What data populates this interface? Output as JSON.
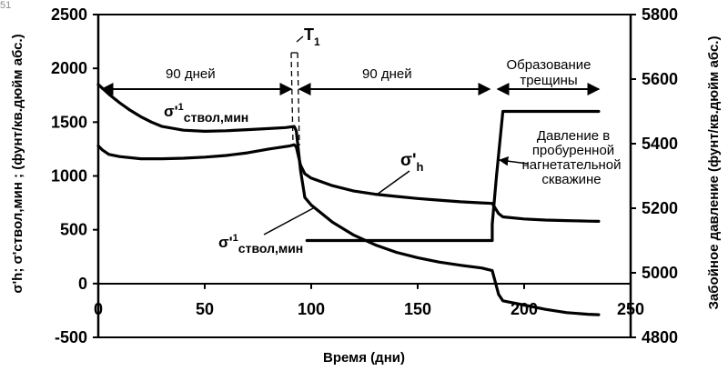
{
  "corner_mark": "51",
  "chart_data": {
    "type": "line",
    "xlabel": "Время (дни)",
    "ylabel_left": "σ'h; σ'ствол,мин ; (фунт/кв.дюйм абс.)",
    "ylabel_right": "Забойное давление (фунт/кв.дюйм абс.)",
    "xlim": [
      0,
      250
    ],
    "xticks": [
      "0",
      "50",
      "100",
      "150",
      "200",
      "250"
    ],
    "ylim_left": [
      -500,
      2500
    ],
    "yticks_left": [
      "-500",
      "0",
      "500",
      "1000",
      "1500",
      "2000",
      "2500"
    ],
    "ylim_right": [
      4800,
      5800
    ],
    "yticks_right": [
      "4800",
      "5000",
      "5200",
      "5400",
      "5600",
      "5800"
    ],
    "series": [
      {
        "name": "σ'ствол,мин",
        "axis": "left",
        "points": [
          [
            0,
            1850
          ],
          [
            5,
            1760
          ],
          [
            10,
            1680
          ],
          [
            15,
            1610
          ],
          [
            20,
            1550
          ],
          [
            25,
            1500
          ],
          [
            30,
            1460
          ],
          [
            40,
            1425
          ],
          [
            50,
            1415
          ],
          [
            60,
            1420
          ],
          [
            70,
            1430
          ],
          [
            80,
            1440
          ],
          [
            88,
            1450
          ],
          [
            92,
            1460
          ],
          [
            93,
            1420
          ],
          [
            95,
            1050
          ],
          [
            97,
            800
          ],
          [
            100,
            730
          ],
          [
            110,
            570
          ],
          [
            120,
            450
          ],
          [
            130,
            360
          ],
          [
            140,
            290
          ],
          [
            150,
            240
          ],
          [
            160,
            200
          ],
          [
            170,
            170
          ],
          [
            180,
            145
          ],
          [
            185,
            120
          ],
          [
            188,
            -100
          ],
          [
            190,
            -160
          ],
          [
            200,
            -200
          ],
          [
            210,
            -240
          ],
          [
            220,
            -270
          ],
          [
            230,
            -285
          ],
          [
            235,
            -290
          ]
        ]
      },
      {
        "name": "σ'h",
        "axis": "left",
        "points": [
          [
            0,
            1280
          ],
          [
            2,
            1240
          ],
          [
            5,
            1200
          ],
          [
            10,
            1180
          ],
          [
            20,
            1160
          ],
          [
            30,
            1160
          ],
          [
            40,
            1165
          ],
          [
            50,
            1175
          ],
          [
            60,
            1190
          ],
          [
            70,
            1215
          ],
          [
            80,
            1250
          ],
          [
            90,
            1280
          ],
          [
            92,
            1290
          ],
          [
            93,
            1270
          ],
          [
            95,
            1100
          ],
          [
            97,
            1020
          ],
          [
            100,
            980
          ],
          [
            110,
            910
          ],
          [
            120,
            860
          ],
          [
            130,
            830
          ],
          [
            140,
            810
          ],
          [
            150,
            790
          ],
          [
            160,
            775
          ],
          [
            170,
            760
          ],
          [
            180,
            750
          ],
          [
            185,
            745
          ],
          [
            188,
            650
          ],
          [
            190,
            620
          ],
          [
            200,
            600
          ],
          [
            210,
            590
          ],
          [
            220,
            585
          ],
          [
            230,
            580
          ],
          [
            235,
            578
          ]
        ]
      },
      {
        "name": "Давление в пробуренной нагнетательной скважине",
        "axis": "right",
        "points": [
          [
            98,
            5100
          ],
          [
            185,
            5100
          ],
          [
            185,
            5150
          ],
          [
            187,
            5300
          ],
          [
            190,
            5500
          ],
          [
            235,
            5500
          ]
        ]
      }
    ],
    "annotations": {
      "period1": "90 дней",
      "period2": "90 дней",
      "fracture_line1": "Образование",
      "fracture_line2": "трещины",
      "t1_main": "T",
      "t1_sub": "1",
      "sh_main": "σ'",
      "sh_sub": "h",
      "wb_upper_main": "σ'",
      "wb_upper_sup": "1",
      "wb_upper_sub": "ствол,мин",
      "wb_lower_main": "σ'",
      "wb_lower_sup": "1",
      "wb_lower_sub": "ствол,мин",
      "pressure_line1": "Давление в",
      "pressure_line2": "пробуренной",
      "pressure_line3": "нагнетательной",
      "pressure_line4": "скважине"
    }
  }
}
